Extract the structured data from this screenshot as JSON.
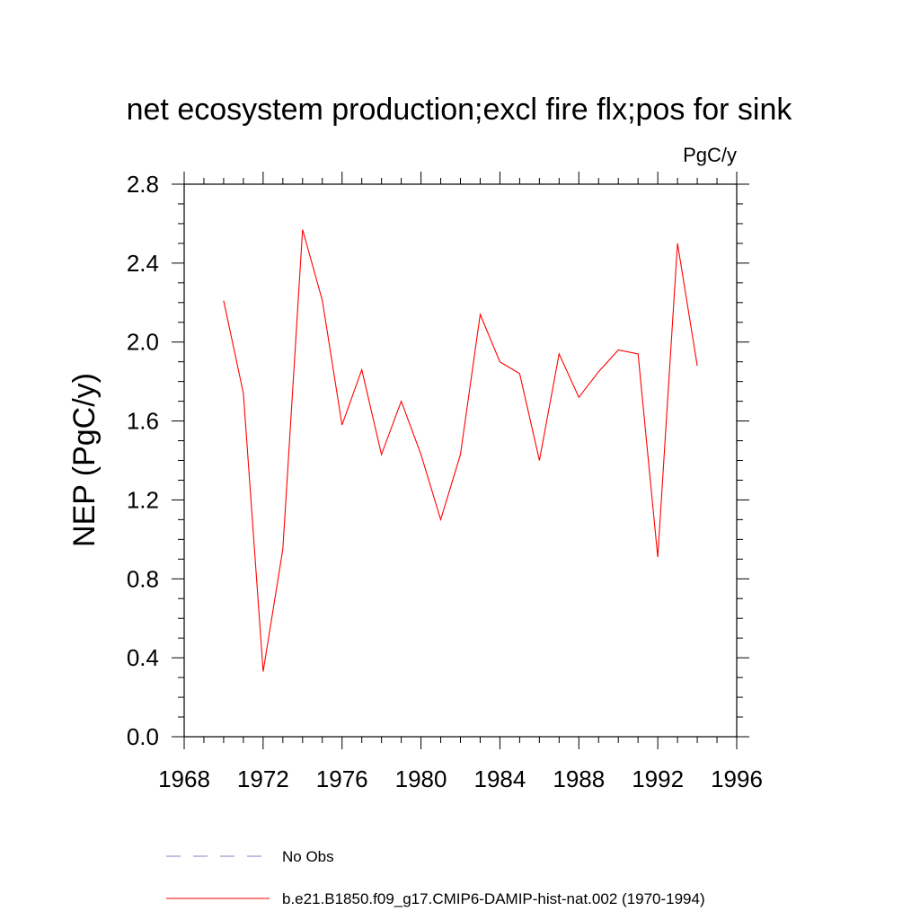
{
  "chart_data": {
    "type": "line",
    "title": "net ecosystem production;excl fire flx;pos for sink",
    "units_label": "PgC/y",
    "ylabel": "NEP  (PgC/y)",
    "xlabel": "",
    "xlim": [
      1968,
      1996
    ],
    "ylim": [
      0.0,
      2.8
    ],
    "x_ticks": [
      1968,
      1972,
      1976,
      1980,
      1984,
      1988,
      1992,
      1996
    ],
    "x_tick_labels": [
      "1968",
      "1972",
      "1976",
      "1980",
      "1984",
      "1988",
      "1992",
      "1996"
    ],
    "y_ticks": [
      0.0,
      0.4,
      0.8,
      1.2,
      1.6,
      2.0,
      2.4,
      2.8
    ],
    "y_tick_labels": [
      "0.0",
      "0.4",
      "0.8",
      "1.2",
      "1.6",
      "2.0",
      "2.4",
      "2.8"
    ],
    "grid": false,
    "legend_position": "bottom",
    "series": [
      {
        "name": "b.e21.B1850.f09_g17.CMIP6-DAMIP-hist-nat.002 (1970-1994)",
        "color": "#ff0000",
        "style": "solid",
        "x": [
          1970,
          1971,
          1972,
          1973,
          1974,
          1975,
          1976,
          1977,
          1978,
          1979,
          1980,
          1981,
          1982,
          1983,
          1984,
          1985,
          1986,
          1987,
          1988,
          1989,
          1990,
          1991,
          1992,
          1993,
          1994
        ],
        "y": [
          2.21,
          1.74,
          0.33,
          0.95,
          2.57,
          2.21,
          1.58,
          1.86,
          1.43,
          1.7,
          1.43,
          1.1,
          1.43,
          2.14,
          1.9,
          1.84,
          1.4,
          1.94,
          1.72,
          1.85,
          1.96,
          1.94,
          0.91,
          2.5,
          1.88
        ]
      }
    ],
    "legend": [
      {
        "label": "No Obs",
        "color": "#8a7fc4",
        "style": "dashed"
      },
      {
        "label": "b.e21.B1850.f09_g17.CMIP6-DAMIP-hist-nat.002 (1970-1994)",
        "color": "#ff0000",
        "style": "solid"
      }
    ]
  }
}
